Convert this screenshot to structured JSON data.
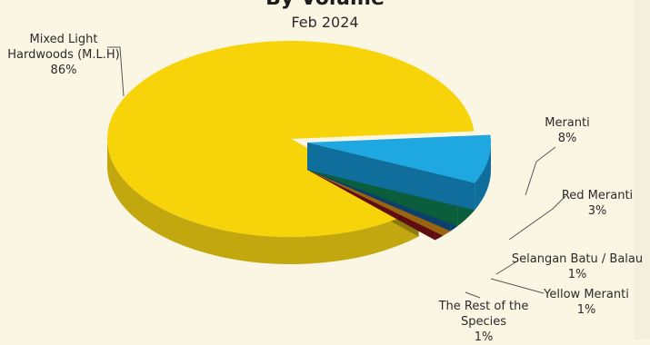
{
  "chart_data": {
    "type": "pie",
    "title": "By Volume",
    "subtitle": "Feb 2024",
    "slices": [
      {
        "label_lines": [
          "Mixed Light",
          "Hardwoods (M.L.H)"
        ],
        "value_label": "86%",
        "value": 86,
        "color": "#f7d40a",
        "side": "#c2a80e"
      },
      {
        "label_lines": [
          "Meranti"
        ],
        "value_label": "8%",
        "value": 8,
        "color": "#1fa7e1",
        "side": "#0f6e9c"
      },
      {
        "label_lines": [
          "Red Meranti"
        ],
        "value_label": "3%",
        "value": 3,
        "color": "#12995f",
        "side": "#0b5e3b"
      },
      {
        "label_lines": [
          "Selangan Batu / Balau"
        ],
        "value_label": "1%",
        "value": 1,
        "color": "#1565a6",
        "side": "#0c3f6b"
      },
      {
        "label_lines": [
          "Yellow Meranti"
        ],
        "value_label": "1%",
        "value": 1,
        "color": "#e79a1d",
        "side": "#9a6410"
      },
      {
        "label_lines": [
          "The Rest of the",
          "Species"
        ],
        "value_label": "1%",
        "value": 1,
        "color": "#b11a22",
        "side": "#5e0e12"
      }
    ],
    "legend": "none"
  }
}
